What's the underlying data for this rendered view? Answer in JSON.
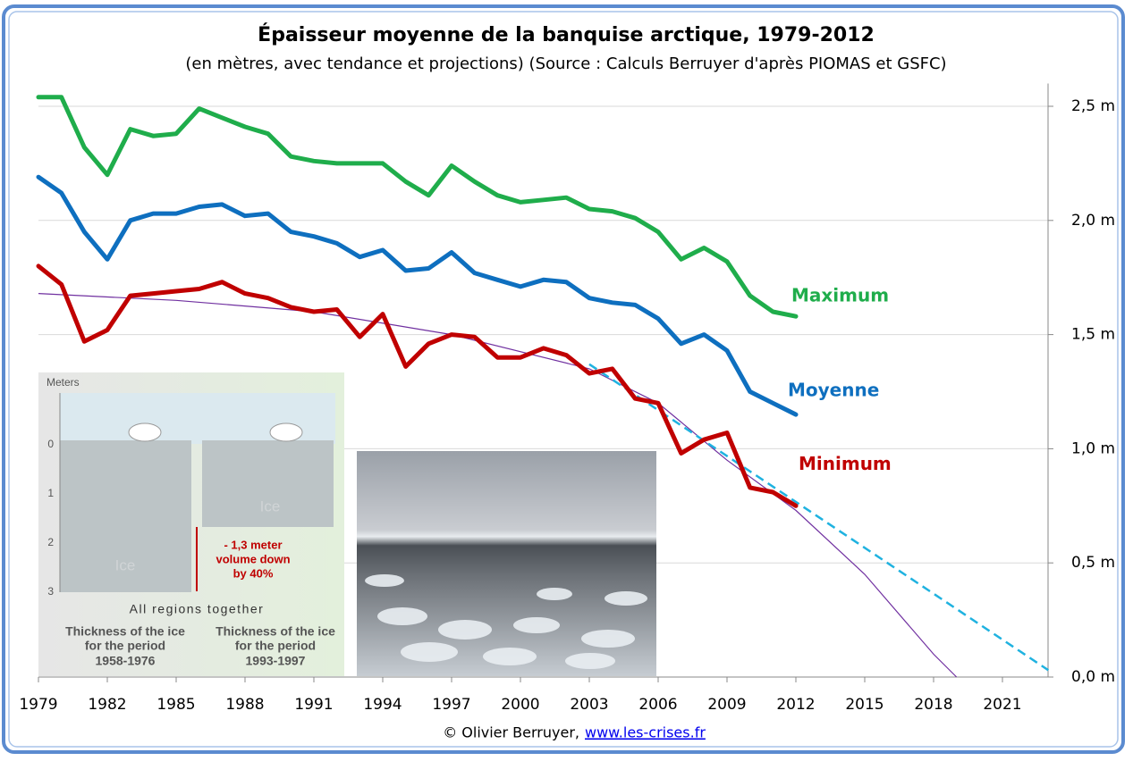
{
  "chart_data": {
    "type": "line",
    "title": "Épaisseur moyenne de la banquise arctique, 1979-2012",
    "subtitle": "(en mètres, avec tendance et projections) (Source : Calculs Berruyer d'après PIOMAS et GSFC)",
    "x": [
      1979,
      1980,
      1981,
      1982,
      1983,
      1984,
      1985,
      1986,
      1987,
      1988,
      1989,
      1990,
      1991,
      1992,
      1993,
      1994,
      1995,
      1996,
      1997,
      1998,
      1999,
      2000,
      2001,
      2002,
      2003,
      2004,
      2005,
      2006,
      2007,
      2008,
      2009,
      2010,
      2011,
      2012
    ],
    "series": [
      {
        "name": "Maximum",
        "color": "#1fad4b",
        "values": [
          2.54,
          2.54,
          2.32,
          2.2,
          2.4,
          2.37,
          2.38,
          2.49,
          2.45,
          2.41,
          2.38,
          2.28,
          2.26,
          2.25,
          2.25,
          2.25,
          2.17,
          2.11,
          2.24,
          2.17,
          2.11,
          2.08,
          2.09,
          2.1,
          2.05,
          2.04,
          2.01,
          1.95,
          1.83,
          1.88,
          1.82,
          1.67,
          1.6,
          1.58
        ]
      },
      {
        "name": "Moyenne",
        "color": "#0e6fbf",
        "values": [
          2.19,
          2.12,
          1.95,
          1.83,
          2.0,
          2.03,
          2.03,
          2.06,
          2.07,
          2.02,
          2.03,
          1.95,
          1.93,
          1.9,
          1.84,
          1.87,
          1.78,
          1.79,
          1.86,
          1.77,
          1.74,
          1.71,
          1.74,
          1.73,
          1.66,
          1.64,
          1.63,
          1.57,
          1.46,
          1.5,
          1.43,
          1.25,
          1.2,
          1.15
        ]
      },
      {
        "name": "Minimum",
        "color": "#c00000",
        "values": [
          1.8,
          1.72,
          1.47,
          1.52,
          1.67,
          1.68,
          1.69,
          1.7,
          1.73,
          1.68,
          1.66,
          1.62,
          1.6,
          1.61,
          1.49,
          1.59,
          1.36,
          1.46,
          1.5,
          1.49,
          1.4,
          1.4,
          1.44,
          1.41,
          1.33,
          1.35,
          1.22,
          1.2,
          0.98,
          1.04,
          1.07,
          0.83,
          0.81,
          0.75
        ]
      }
    ],
    "trend": {
      "color": "#7030a0",
      "x": [
        1979,
        1985,
        1991,
        1997,
        2003,
        2006,
        2009,
        2012,
        2015,
        2018,
        2019
      ],
      "values": [
        1.68,
        1.65,
        1.6,
        1.5,
        1.35,
        1.2,
        0.95,
        0.73,
        0.45,
        0.1,
        0
      ]
    },
    "projection": {
      "color": "#1fb2e0",
      "x": [
        2003,
        2023
      ],
      "values": [
        1.37,
        0.03
      ]
    },
    "xlim": [
      1979,
      2023
    ],
    "xticks": [
      1979,
      1982,
      1985,
      1988,
      1991,
      1994,
      1997,
      2000,
      2003,
      2006,
      2009,
      2012,
      2015,
      2018,
      2021
    ],
    "ylim": [
      0,
      2.6
    ],
    "yticks": [
      {
        "value": 0,
        "label": "0,0 m"
      },
      {
        "value": 0.5,
        "label": "0,5 m"
      },
      {
        "value": 1,
        "label": "1,0 m"
      },
      {
        "value": 1.5,
        "label": "1,5 m"
      },
      {
        "value": 2,
        "label": "2,0 m"
      },
      {
        "value": 2.5,
        "label": "2,5 m"
      }
    ],
    "grid": true
  },
  "inset": {
    "axis_label": "Meters",
    "depth_ticks": [
      "0",
      "1",
      "2",
      "3"
    ],
    "ice_labels": [
      "Ice",
      "Ice"
    ],
    "annotation": [
      "- 1,3 meter",
      "volume down",
      "by 40%"
    ],
    "caption": "All regions together",
    "periods": [
      [
        "Thickness of the ice",
        "for the period",
        "1958-1976"
      ],
      [
        "Thickness of the ice",
        "for the period",
        "1993-1997"
      ]
    ]
  },
  "footer": {
    "credit": "© Olivier Berruyer,",
    "link": "www.les-crises.fr"
  }
}
